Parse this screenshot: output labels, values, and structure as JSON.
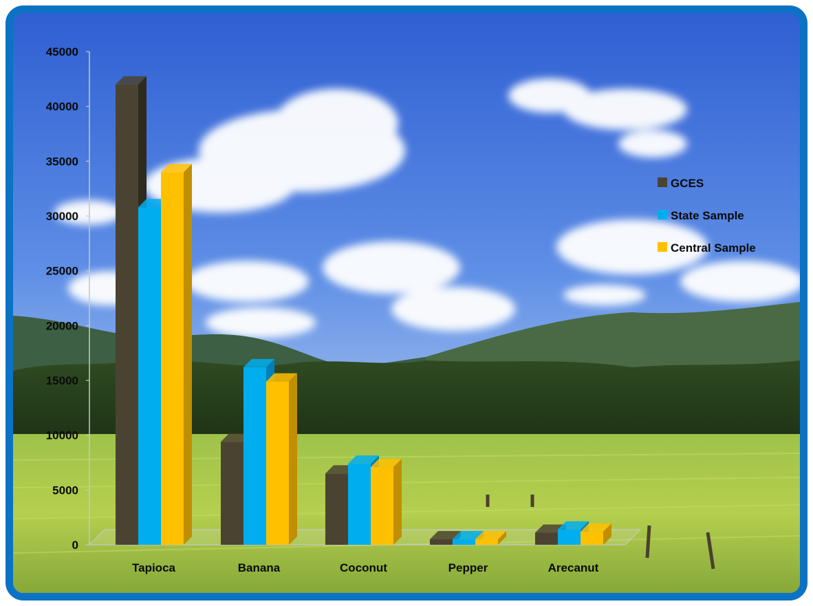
{
  "colors": {
    "frame": "#0b72c4",
    "series": [
      "#4b4332",
      "#00aeef",
      "#ffc000"
    ],
    "series_side": [
      "#2e2a1e",
      "#0080b8",
      "#c08f00"
    ]
  },
  "chart_data": {
    "type": "bar",
    "style": "3d-clustered-column",
    "background": "photo of blue sky with white clouds, green hills and a green paddy field",
    "categories": [
      "Tapioca",
      "Banana",
      "Coconut",
      "Pepper",
      "Arecanut"
    ],
    "series": [
      {
        "name": "GCES",
        "values": [
          42000,
          9400,
          6500,
          500,
          1100
        ]
      },
      {
        "name": "State Sample",
        "values": [
          30800,
          16200,
          7400,
          500,
          1400
        ]
      },
      {
        "name": "Central Sample",
        "values": [
          34000,
          14900,
          7100,
          500,
          1200
        ]
      }
    ],
    "yticks": [
      "0",
      "5000",
      "10000",
      "15000",
      "20000",
      "25000",
      "30000",
      "35000",
      "40000",
      "45000"
    ],
    "ylim": [
      0,
      45000
    ],
    "grid": false,
    "legend_position": "right"
  }
}
